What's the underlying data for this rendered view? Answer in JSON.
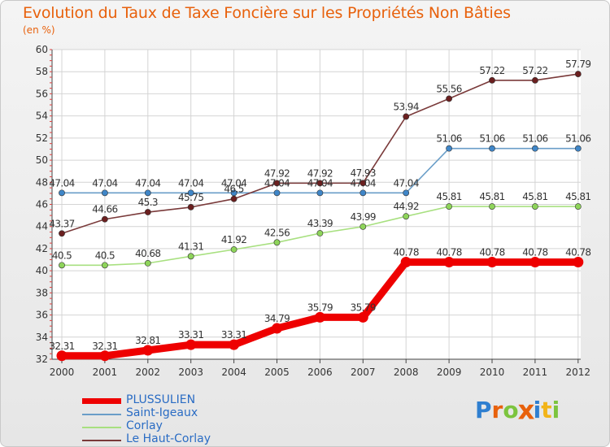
{
  "chart_data": {
    "type": "line",
    "title": "Evolution du Taux de Taxe Foncière sur les Propriétés Non Bâties",
    "subtitle": "(en %)",
    "xlabel": "",
    "ylabel": "",
    "ylim": [
      32,
      60
    ],
    "yticks": [
      32,
      34,
      36,
      38,
      40,
      42,
      44,
      46,
      48,
      50,
      52,
      54,
      56,
      58,
      60
    ],
    "categories": [
      "2000",
      "2001",
      "2002",
      "2003",
      "2004",
      "2005",
      "2006",
      "2007",
      "2008",
      "2009",
      "2010",
      "2011",
      "2012"
    ],
    "series": [
      {
        "name": "Saint-Igeaux",
        "color": "#6a9ec8",
        "marker": "#3f86c8",
        "values": [
          47.04,
          47.04,
          47.04,
          47.04,
          47.04,
          47.04,
          47.04,
          47.04,
          47.04,
          51.06,
          51.06,
          51.06,
          51.06
        ],
        "labels": [
          "47.04",
          "47.04",
          "47.04",
          "47.04",
          "47.04",
          "47.04",
          "47.04",
          "47.04",
          "47.04",
          "51.06",
          "51.06",
          "51.06",
          "51.06"
        ]
      },
      {
        "name": "Corlay",
        "color": "#a8e080",
        "marker": "#8ed45a",
        "values": [
          40.5,
          40.5,
          40.68,
          41.31,
          41.92,
          42.56,
          43.39,
          43.99,
          44.92,
          45.81,
          45.81,
          45.81,
          45.81
        ],
        "labels": [
          "40.5",
          "40.5",
          "40.68",
          "41.31",
          "41.92",
          "42.56",
          "43.39",
          "43.99",
          "44.92",
          "45.81",
          "45.81",
          "45.81",
          "45.81"
        ]
      },
      {
        "name": "Le Haut-Corlay",
        "color": "#7a3a3a",
        "marker": "#6b1f1f",
        "values": [
          43.37,
          44.66,
          45.3,
          45.75,
          46.5,
          47.92,
          47.92,
          47.93,
          53.94,
          55.56,
          57.22,
          57.22,
          57.79
        ],
        "labels": [
          "43.37",
          "44.66",
          "45.3",
          "45.75",
          "46.5",
          "47.92",
          "47.92",
          "47.93",
          "53.94",
          "55.56",
          "57.22",
          "57.22",
          "57.79"
        ]
      },
      {
        "name": "PLUSSULIEN",
        "color": "#ee0000",
        "marker": "#ee0000",
        "values": [
          32.31,
          32.31,
          32.81,
          33.31,
          33.31,
          34.79,
          35.79,
          35.79,
          40.78,
          40.78,
          40.78,
          40.78,
          40.78
        ],
        "labels": [
          "32.31",
          "32.31",
          "32.81",
          "33.31",
          "33.31",
          "34.79",
          "35.79",
          "35.79",
          "40.78",
          "40.78",
          "40.78",
          "40.78",
          "40.78"
        ]
      }
    ],
    "legend": [
      {
        "name": "PLUSSULIEN",
        "color": "#ee0000"
      },
      {
        "name": "Saint-Igeaux",
        "color": "#6a9ec8"
      },
      {
        "name": "Corlay",
        "color": "#a8e080"
      },
      {
        "name": "Le Haut-Corlay",
        "color": "#7a3a3a"
      }
    ]
  },
  "logo": {
    "letters": [
      "P",
      "r",
      "o",
      "x",
      "i",
      "t",
      "i"
    ],
    "colors": [
      "#2f7fd0",
      "#e8610c",
      "#7cc43e",
      "#e8610c",
      "#2f7fd0",
      "#f2b418",
      "#7cc43e"
    ]
  }
}
